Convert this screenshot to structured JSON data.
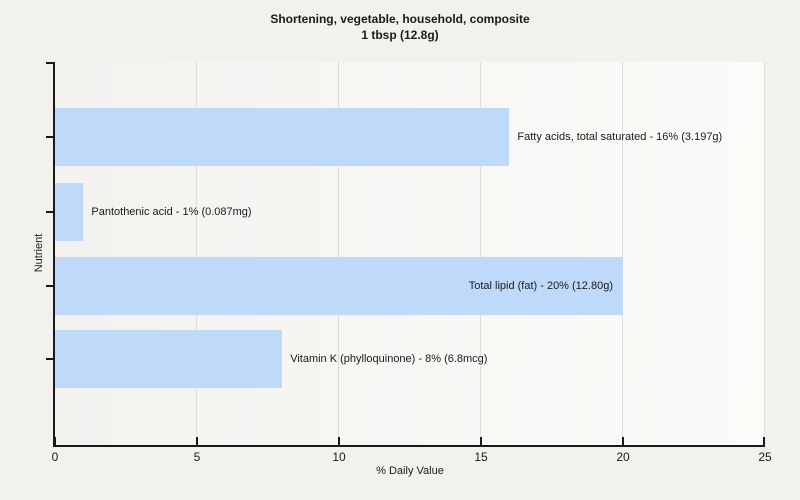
{
  "chart_data": {
    "type": "bar",
    "orientation": "horizontal",
    "title": "Shortening, vegetable, household, composite",
    "subtitle": "1 tbsp (12.8g)",
    "xlabel": "% Daily Value",
    "ylabel": "Nutrient",
    "xlim": [
      0,
      25
    ],
    "xticks": [
      0,
      5,
      10,
      15,
      20,
      25
    ],
    "grid": "vertical",
    "legend_position": "none",
    "bars": [
      {
        "nutrient": "Fatty acids, total saturated",
        "percent_daily_value": 16,
        "amount": "3.197g",
        "label": "Fatty acids, total saturated - 16% (3.197g)",
        "label_position": "outside"
      },
      {
        "nutrient": "Pantothenic acid",
        "percent_daily_value": 1,
        "amount": "0.087mg",
        "label": "Pantothenic acid - 1% (0.087mg)",
        "label_position": "outside"
      },
      {
        "nutrient": "Total lipid (fat)",
        "percent_daily_value": 20,
        "amount": "12.80g",
        "label": "Total lipid (fat) - 20% (12.80g)",
        "label_position": "inside"
      },
      {
        "nutrient": "Vitamin K (phylloquinone)",
        "percent_daily_value": 8,
        "amount": "6.8mcg",
        "label": "Vitamin K (phylloquinone) - 8% (6.8mcg)",
        "label_position": "outside"
      }
    ],
    "colors": {
      "bar_fill": "#BFD9FB",
      "figure_background": "#F2F1EE",
      "plot_background_left": "#F3F2EF",
      "plot_background_right": "#FBFBF9",
      "gridline": "#DEDDD9",
      "axis": "#1A1A1A",
      "text": "#1A1A1A"
    }
  }
}
